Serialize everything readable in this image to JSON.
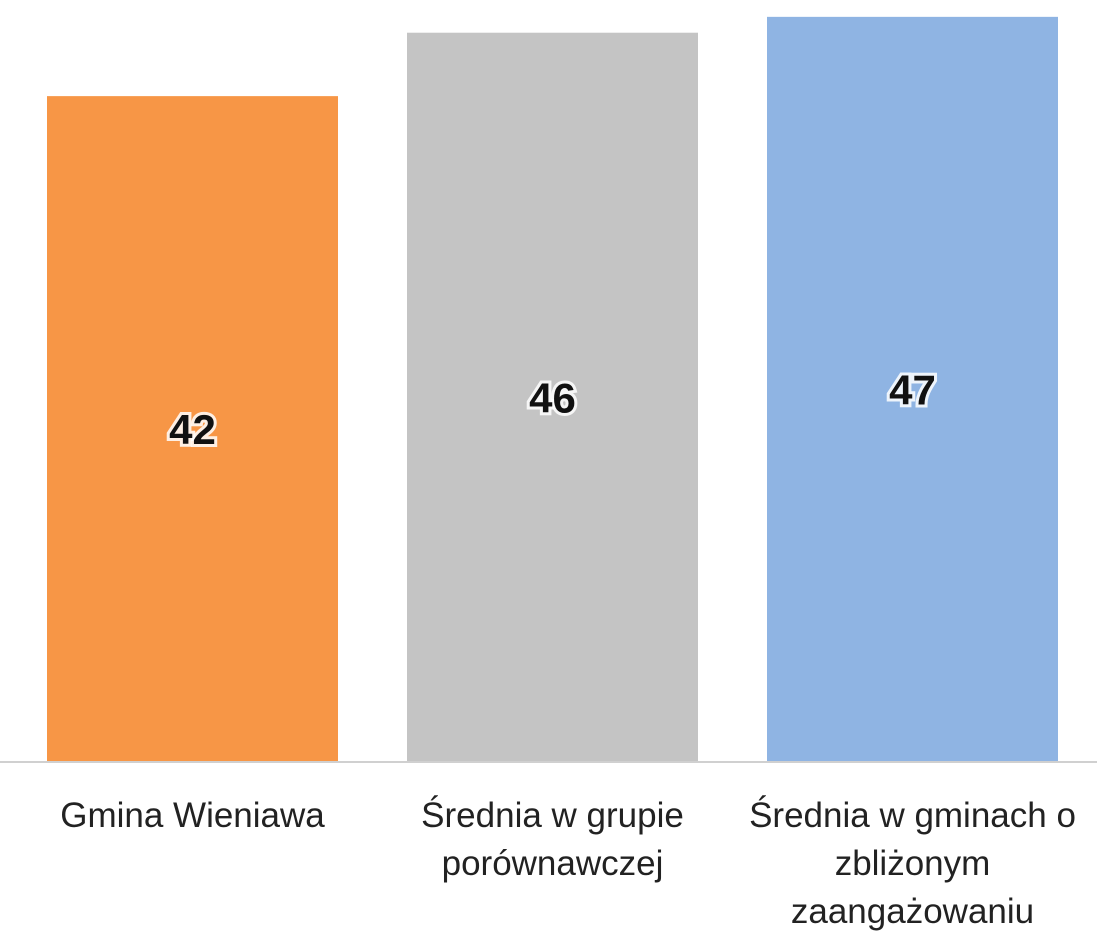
{
  "chart_data": {
    "type": "bar",
    "categories": [
      "Gmina Wieniawa",
      "Średnia w grupie porównawczej",
      "Średnia w gminach o zbliżonym zaangażowaniu"
    ],
    "values": [
      42,
      46,
      47
    ],
    "colors": [
      "#f79646",
      "#c4c4c4",
      "#8fb4e3"
    ],
    "ylim": [
      0,
      48
    ]
  }
}
